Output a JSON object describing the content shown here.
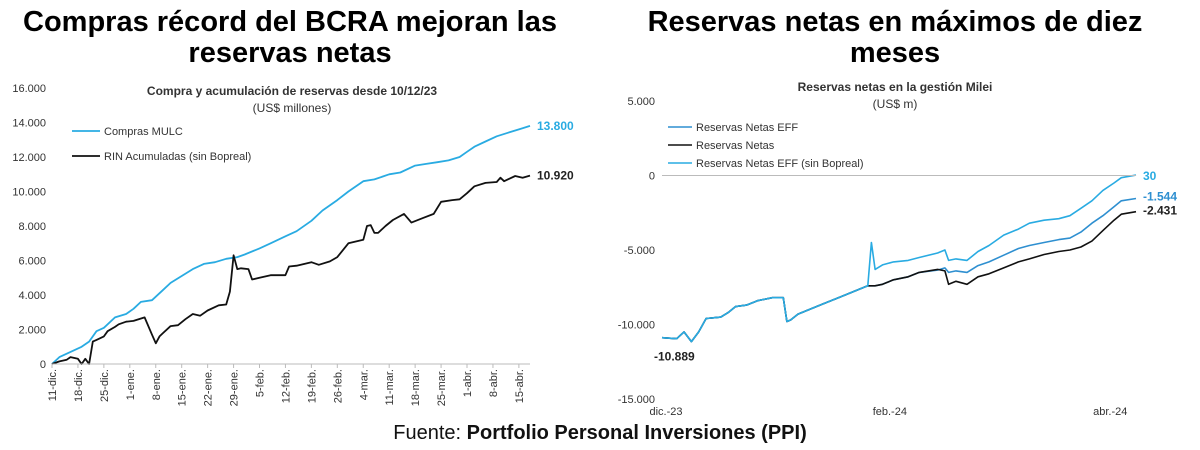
{
  "left_panel": {
    "headline": "Compras récord del BCRA mejoran las reservas netas",
    "chart_title": "Compra y acumulación de reservas desde 10/12/23",
    "chart_subtitle": "(US$ millones)"
  },
  "right_panel": {
    "headline": "Reservas netas en máximos de diez meses",
    "chart_title": "Reservas netas en la gestión Milei",
    "chart_subtitle": "(US$ m)"
  },
  "source": {
    "prefix": "Fuente:",
    "name": "Portfolio Personal Inversiones (PPI)"
  },
  "colors": {
    "cyan": "#29ABE2",
    "blue": "#2E8FD0",
    "black": "#111111",
    "grid": "#DDDDDD",
    "axis": "#BBBBBB"
  },
  "chart_data": [
    {
      "type": "line",
      "title": "Compra y acumulación de reservas desde 10/12/23",
      "subtitle": "(US$ millones)",
      "xlabel": "",
      "ylabel": "",
      "ylim": [
        0,
        16000
      ],
      "yticks": [
        0,
        2000,
        4000,
        6000,
        8000,
        10000,
        12000,
        14000,
        16000
      ],
      "ytick_labels": [
        "0",
        "2.000",
        "4.000",
        "6.000",
        "8.000",
        "10.000",
        "12.000",
        "14.000",
        "16.000"
      ],
      "xlim": [
        0,
        129
      ],
      "xticks": [
        0,
        7,
        14,
        21,
        28,
        35,
        42,
        49,
        56,
        63,
        70,
        77,
        84,
        91,
        98,
        105,
        112,
        119,
        126
      ],
      "xtick_labels": [
        "11-dic.",
        "18-dic.",
        "25-dic.",
        "1-ene.",
        "8-ene.",
        "15-ene.",
        "22-ene.",
        "29-ene.",
        "5-feb.",
        "12-feb.",
        "19-feb.",
        "26-feb.",
        "4-mar.",
        "11-mar.",
        "18-mar.",
        "25-mar.",
        "1-abr.",
        "8-abr.",
        "15-abr."
      ],
      "legend": "top-left",
      "series": [
        {
          "name": "Compras MULC",
          "color": "#29ABE2",
          "end_label": "13.800",
          "x": [
            0,
            2,
            5,
            8,
            10,
            12,
            14,
            17,
            20,
            22,
            24,
            27,
            30,
            32,
            35,
            38,
            41,
            44,
            47,
            50,
            52,
            56,
            59,
            63,
            66,
            70,
            73,
            77,
            80,
            84,
            87,
            91,
            94,
            98,
            101,
            104,
            107,
            110,
            112,
            114,
            117,
            120,
            123,
            126,
            129
          ],
          "y": [
            0,
            400,
            700,
            1000,
            1300,
            1900,
            2100,
            2700,
            2900,
            3200,
            3600,
            3700,
            4300,
            4700,
            5100,
            5500,
            5800,
            5900,
            6100,
            6200,
            6350,
            6700,
            7000,
            7400,
            7700,
            8300,
            8900,
            9500,
            10000,
            10600,
            10700,
            11000,
            11100,
            11500,
            11600,
            11700,
            11800,
            12000,
            12300,
            12600,
            12900,
            13200,
            13400,
            13600,
            13800
          ]
        },
        {
          "name": "RIN Acumuladas (sin Bopreal)",
          "color": "#111111",
          "end_label": "10.920",
          "x": [
            0,
            2,
            4,
            5,
            7,
            8,
            9,
            10,
            11,
            12,
            14,
            15,
            17,
            18,
            20,
            22,
            25,
            27,
            28,
            29,
            30,
            32,
            34,
            36,
            38,
            40,
            42,
            45,
            47,
            48,
            49,
            50,
            51,
            53,
            54,
            56,
            59,
            63,
            64,
            66,
            70,
            72,
            75,
            77,
            80,
            82,
            84,
            85,
            86,
            87,
            88,
            90,
            92,
            95,
            97,
            100,
            103,
            105,
            108,
            110,
            112,
            114,
            117,
            120,
            121,
            122,
            123,
            125,
            127,
            129
          ],
          "y": [
            0,
            150,
            250,
            400,
            300,
            0,
            300,
            0,
            1300,
            1400,
            1600,
            1900,
            2150,
            2300,
            2450,
            2500,
            2700,
            1700,
            1200,
            1600,
            1800,
            2200,
            2250,
            2600,
            2900,
            2800,
            3100,
            3400,
            3450,
            4200,
            6300,
            5500,
            5550,
            5500,
            4900,
            5000,
            5150,
            5150,
            5650,
            5700,
            5900,
            5750,
            5950,
            6200,
            7000,
            7100,
            7200,
            8000,
            8050,
            7600,
            7600,
            8000,
            8350,
            8700,
            8200,
            8450,
            8700,
            9400,
            9500,
            9550,
            9900,
            10300,
            10500,
            10550,
            10800,
            10600,
            10700,
            10900,
            10800,
            10920
          ]
        }
      ]
    },
    {
      "type": "line",
      "title": "Reservas netas en la gestión Milei",
      "subtitle": "(US$ m)",
      "xlabel": "",
      "ylabel": "",
      "ylim": [
        -15000,
        5000
      ],
      "yticks": [
        -15000,
        -10000,
        -5000,
        0,
        5000
      ],
      "ytick_labels": [
        "-15.000",
        "-10.000",
        "-5.000",
        "0",
        "5.000"
      ],
      "xlim": [
        0,
        129
      ],
      "xticks": [
        0,
        62,
        122
      ],
      "xtick_labels": [
        "dic.-23",
        "feb.-24",
        "abr.-24"
      ],
      "legend": "top-left",
      "start_label": "-10.889",
      "series": [
        {
          "name": "Reservas Netas EFF",
          "color": "#2E8FD0",
          "end_label": "-1.544",
          "x": [
            0,
            4,
            6,
            8,
            10,
            12,
            14,
            16,
            18,
            20,
            23,
            26,
            30,
            33,
            34,
            35,
            37,
            40,
            44,
            48,
            52,
            55,
            56,
            57,
            58,
            60,
            63,
            67,
            70,
            75,
            77,
            78,
            80,
            83,
            86,
            89,
            93,
            97,
            100,
            104,
            108,
            111,
            114,
            117,
            120,
            123,
            125,
            129
          ],
          "y": [
            -10889,
            -10950,
            -10500,
            -11150,
            -10500,
            -9600,
            -9550,
            -9500,
            -9200,
            -8800,
            -8700,
            -8400,
            -8200,
            -8200,
            -9800,
            -9700,
            -9300,
            -9000,
            -8600,
            -8200,
            -7800,
            -7500,
            -7400,
            -7400,
            -7400,
            -7300,
            -7000,
            -6800,
            -6500,
            -6350,
            -6200,
            -6500,
            -6400,
            -6500,
            -6050,
            -5800,
            -5350,
            -4900,
            -4700,
            -4500,
            -4300,
            -4200,
            -3800,
            -3200,
            -2700,
            -2100,
            -1700,
            -1544
          ]
        },
        {
          "name": "Reservas Netas",
          "color": "#111111",
          "end_label": "-2.431",
          "x": [
            0,
            4,
            6,
            8,
            10,
            12,
            14,
            16,
            18,
            20,
            23,
            26,
            30,
            33,
            34,
            35,
            37,
            40,
            44,
            48,
            52,
            55,
            56,
            57,
            58,
            60,
            63,
            67,
            70,
            75,
            77,
            78,
            80,
            83,
            86,
            89,
            93,
            97,
            100,
            104,
            108,
            111,
            114,
            117,
            120,
            123,
            125,
            129
          ],
          "y": [
            -10889,
            -10950,
            -10500,
            -11150,
            -10500,
            -9600,
            -9550,
            -9500,
            -9200,
            -8800,
            -8700,
            -8400,
            -8200,
            -8200,
            -9800,
            -9700,
            -9300,
            -9000,
            -8600,
            -8200,
            -7800,
            -7500,
            -7400,
            -7400,
            -7400,
            -7300,
            -7000,
            -6800,
            -6500,
            -6300,
            -6400,
            -7300,
            -7100,
            -7300,
            -6800,
            -6600,
            -6200,
            -5800,
            -5600,
            -5300,
            -5100,
            -5000,
            -4800,
            -4400,
            -3700,
            -3000,
            -2600,
            -2431
          ]
        },
        {
          "name": "Reservas Netas EFF (sin Bopreal)",
          "color": "#29ABE2",
          "end_label": "30",
          "x": [
            0,
            4,
            6,
            8,
            10,
            12,
            14,
            16,
            18,
            20,
            23,
            26,
            30,
            33,
            34,
            35,
            37,
            40,
            44,
            48,
            52,
            55,
            56,
            57,
            58,
            60,
            63,
            67,
            70,
            75,
            77,
            78,
            80,
            83,
            86,
            89,
            93,
            97,
            100,
            104,
            108,
            111,
            114,
            117,
            120,
            123,
            125,
            129
          ],
          "y": [
            -10889,
            -10950,
            -10500,
            -11150,
            -10500,
            -9600,
            -9550,
            -9500,
            -9200,
            -8800,
            -8700,
            -8400,
            -8200,
            -8200,
            -9800,
            -9700,
            -9300,
            -9000,
            -8600,
            -8200,
            -7800,
            -7500,
            -7400,
            -4500,
            -6300,
            -6000,
            -5800,
            -5700,
            -5500,
            -5200,
            -5000,
            -5700,
            -5600,
            -5700,
            -5100,
            -4700,
            -4000,
            -3600,
            -3200,
            -3000,
            -2900,
            -2700,
            -2200,
            -1700,
            -1000,
            -500,
            -150,
            30
          ]
        }
      ]
    }
  ]
}
